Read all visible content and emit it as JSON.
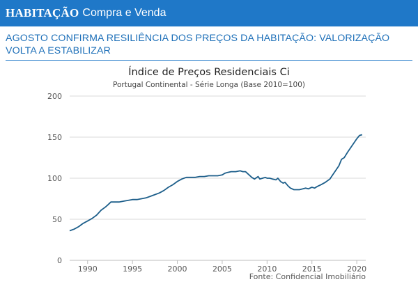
{
  "header": {
    "section": "HABITAÇÃO",
    "subsection": "Compra e Venda"
  },
  "article": {
    "headline": "AGOSTO CONFIRMA RESILIÊNCIA DOS PREÇOS DA HABITAÇÃO: VALORIZAÇÃO VOLTA A ESTABILIZAR"
  },
  "colors": {
    "banner": "#1f78c8",
    "headline": "#1d6fb8",
    "series": "#1c5e8a",
    "grid": "#d9d9d9"
  },
  "chart_data": {
    "type": "line",
    "title": "Índice de Preços Residenciais Ci",
    "subtitle": "Portugal Continental - Série Longa (Base 2010=100)",
    "source": "Fonte: Confidencial Imobiliário",
    "xlabel": "",
    "ylabel": "",
    "xlim": [
      1988,
      2021
    ],
    "ylim": [
      0,
      200
    ],
    "x_ticks": [
      1990,
      1995,
      2000,
      2005,
      2010,
      2015,
      2020
    ],
    "y_ticks": [
      0,
      50,
      100,
      150,
      200
    ],
    "grid": "horizontal",
    "series": [
      {
        "name": "Índice de Preços Residenciais Ci",
        "x": [
          1988.0,
          1988.5,
          1989.0,
          1989.5,
          1990.0,
          1990.5,
          1991.0,
          1991.5,
          1992.0,
          1992.3,
          1992.6,
          1993.0,
          1993.5,
          1994.0,
          1994.5,
          1995.0,
          1995.5,
          1996.0,
          1996.5,
          1997.0,
          1997.5,
          1998.0,
          1998.5,
          1999.0,
          1999.5,
          2000.0,
          2000.5,
          2001.0,
          2001.5,
          2002.0,
          2002.5,
          2003.0,
          2003.5,
          2004.0,
          2004.5,
          2005.0,
          2005.3,
          2005.6,
          2006.0,
          2006.5,
          2007.0,
          2007.3,
          2007.6,
          2008.0,
          2008.3,
          2008.6,
          2009.0,
          2009.2,
          2009.5,
          2009.8,
          2010.0,
          2010.3,
          2010.6,
          2011.0,
          2011.2,
          2011.5,
          2011.8,
          2012.0,
          2012.3,
          2012.6,
          2013.0,
          2013.3,
          2013.6,
          2014.0,
          2014.3,
          2014.6,
          2015.0,
          2015.3,
          2015.6,
          2016.0,
          2016.5,
          2017.0,
          2017.5,
          2018.0,
          2018.3,
          2018.6,
          2019.0,
          2019.5,
          2020.0,
          2020.3,
          2020.6
        ],
        "values": [
          36,
          38,
          41,
          45,
          48,
          51,
          55,
          61,
          65,
          68,
          71,
          71,
          71,
          72,
          73,
          74,
          74,
          75,
          76,
          78,
          80,
          82,
          85,
          89,
          92,
          96,
          99,
          101,
          101,
          101,
          102,
          102,
          103,
          103,
          103,
          104,
          106,
          107,
          108,
          108,
          109,
          108,
          108,
          104,
          101,
          99,
          102,
          99,
          100,
          101,
          100,
          100,
          99,
          98,
          100,
          96,
          94,
          95,
          91,
          88,
          86,
          86,
          86,
          87,
          88,
          87,
          89,
          88,
          90,
          92,
          95,
          99,
          107,
          115,
          123,
          125,
          132,
          140,
          148,
          152,
          153
        ]
      }
    ]
  }
}
